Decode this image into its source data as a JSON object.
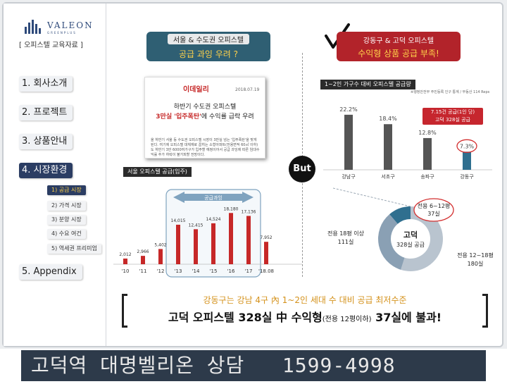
{
  "brand": {
    "name": "VALEON",
    "sub": "GREENPLUS",
    "doc_label": "[ 오피스텔 교육자료 ]"
  },
  "nav": {
    "items": [
      {
        "label": "1. 회사소개"
      },
      {
        "label": "2. 프로젝트"
      },
      {
        "label": "3. 상품안내"
      },
      {
        "label": "4. 시장환경"
      },
      {
        "label": "5. Appendix"
      }
    ],
    "subitems": [
      {
        "label": "1) 공급 시장"
      },
      {
        "label": "2) 가격 시장"
      },
      {
        "label": "3) 분양 시장"
      },
      {
        "label": "4) 수요 여건"
      },
      {
        "label": "5) 역세권 프리미엄"
      }
    ]
  },
  "left_banner": {
    "line1": "서울 & 수도권 오피스텔",
    "line2": "공급 과잉 우려 ?"
  },
  "right_banner": {
    "line1": "강동구 & 고덕 오피스텔",
    "line2": "수익형 상품 공급 부족!"
  },
  "news": {
    "source": "이데일리",
    "date": "2018.07.19",
    "headline1": "하반기 수도권 오피스텔",
    "headline2": "3만실 '입주폭탄'에 수익률 급락 우려",
    "headline2_red": "3만실 '입주폭탄'",
    "headline2_rest": "에 수익률 급락 우려",
    "body": "올 하반기 서울 등 수도권 오피스텔 시장이 3만실 넘는 '입주폭탄'을 맞게 된다. 여기에 오피스텔 대체재로 꼽히는 소형아파트(전용면적 60㎡ 이하)도 하반기 3만 6000여가구가 입주할 예정이어서 공급 과잉에 따른 임대수익률 추가 하락이 불가피할 전망이다."
  },
  "but_label": "But",
  "chart_left_title": "서울 오피스텔 공급(입주)",
  "chart_right_title": "1~2인 가구수 대비 오피스텔 공급량",
  "chart_right_note": "※행정안전부 주민등록 인구 통계 / 부동산 114 Reps",
  "callout": {
    "line1": "7.15건 공급(1인 당)",
    "line2": "고덕 328실 공급"
  },
  "chart_data": [
    {
      "type": "bar",
      "title": "서울 오피스텔 공급(입주)",
      "categories": [
        "'10",
        "'11",
        "'12",
        "'13",
        "'14",
        "'15",
        "'16",
        "'17",
        "'18.08"
      ],
      "values": [
        2012,
        2966,
        5402,
        14015,
        12415,
        14524,
        18180,
        17136,
        7952
      ],
      "value_labels": [
        "2,012",
        "2,966",
        "5,402",
        "14,015",
        "12,415",
        "14,524",
        "18,180",
        "17,136",
        "7,952"
      ],
      "highlight_label": "공급과잉",
      "highlight_range": [
        "'13",
        "'17"
      ],
      "ylim": [
        0,
        20000
      ]
    },
    {
      "type": "bar",
      "title": "1~2인 가구수 대비 오피스텔 공급량",
      "categories": [
        "강남구",
        "서초구",
        "송파구",
        "강동구"
      ],
      "values": [
        22.2,
        18.4,
        12.8,
        7.3
      ],
      "value_labels": [
        "22.2%",
        "18.4%",
        "12.8%",
        "7.3%"
      ],
      "ylim": [
        0,
        25
      ]
    },
    {
      "type": "pie",
      "title": "고덕 328실 공급",
      "center_label": "고덕",
      "center_sub": "328실 공급",
      "slices": [
        {
          "label": "전용 6~12평",
          "count_label": "37실",
          "value": 37
        },
        {
          "label": "전용 12~18평",
          "count_label": "180실",
          "value": 180
        },
        {
          "label": "전용 18평 이상",
          "count_label": "111실",
          "value": 111
        }
      ]
    }
  ],
  "bottom": {
    "line1": "강동구는 강남 4구 內 1~2인 세대 수 대비 공급 최저수준",
    "line2_a": "고덕 오피스텔 328실 中 수익형",
    "line2_small": "(전용 12평이하)",
    "line2_b": " 37실에 불과!"
  },
  "footer_banner": "고덕역 대명벨리온 상담   1599-4998",
  "colors": {
    "navy": "#2b3d63",
    "teal": "#2f5f73",
    "red": "#b2232a",
    "yellow": "#ffd24a",
    "bar": "#555555",
    "highlight_bar": "#2f6f8f"
  }
}
